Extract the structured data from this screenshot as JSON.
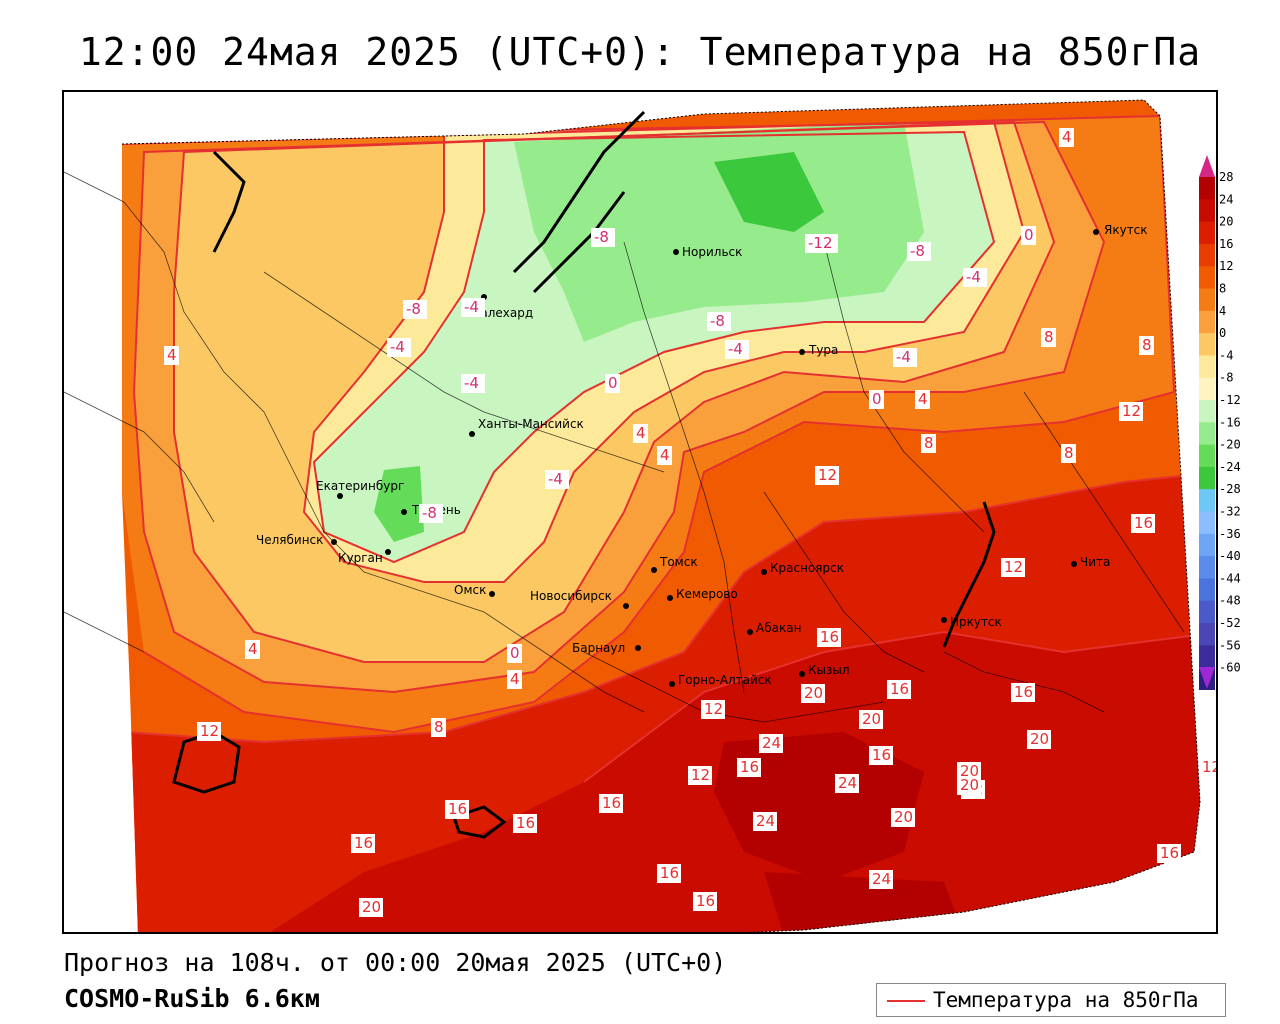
{
  "title": "12:00 24мая 2025 (UTC+0): Температура на 850гПа",
  "forecast_line": "Прогноз на 108ч. от 00:00 20мая 2025 (UTC+0)",
  "model_line": "COSMO-RuSib 6.6км",
  "legend": {
    "label": "Температура на 850гПа",
    "line_color": "#e53030"
  },
  "colorbar": {
    "ticks": [
      "28",
      "24",
      "20",
      "16",
      "12",
      "8",
      "4",
      "0",
      "-4",
      "-8",
      "-12",
      "-16",
      "-20",
      "-24",
      "-28",
      "-32",
      "-36",
      "-40",
      "-44",
      "-48",
      "-52",
      "-56",
      "-60"
    ],
    "colors": [
      "#b30000",
      "#c80a00",
      "#dc1e00",
      "#e83c00",
      "#f05a00",
      "#f57c14",
      "#f9a03c",
      "#fcc864",
      "#fde99a",
      "#fff4c0",
      "#c8f5c0",
      "#96eb8c",
      "#64dc5a",
      "#3cc83c",
      "#6ec8f5",
      "#8cbeff",
      "#6ea5f5",
      "#5a8ceb",
      "#4b73dc",
      "#4b5ac8",
      "#4b46b4",
      "#3c2d9b",
      "#2d1e82"
    ]
  },
  "cities": [
    {
      "name": "Якутск"
    },
    {
      "name": "Норильск"
    },
    {
      "name": "Салехард"
    },
    {
      "name": "Тура"
    },
    {
      "name": "Ханты-Мансийск"
    },
    {
      "name": "Екатеринбург"
    },
    {
      "name": "Тюмень"
    },
    {
      "name": "Челябинск"
    },
    {
      "name": "Курган"
    },
    {
      "name": "Омск"
    },
    {
      "name": "Новосибирск"
    },
    {
      "name": "Томск"
    },
    {
      "name": "Красноярск"
    },
    {
      "name": "Кемерово"
    },
    {
      "name": "Абакан"
    },
    {
      "name": "Барнаул"
    },
    {
      "name": "Горно-Алтайск"
    },
    {
      "name": "Кызыл"
    },
    {
      "name": "Иркутск"
    },
    {
      "name": "Чита"
    }
  ],
  "isotherm_labels": [
    "4",
    "0",
    "-12",
    "-8",
    "-8",
    "-4",
    "-8",
    "-4",
    "-8",
    "-4",
    "0",
    "8",
    "-4",
    "-4",
    "4",
    "4",
    "12",
    "8",
    "4",
    "-4",
    "0",
    "4",
    "8",
    "12",
    "8",
    "16",
    "-4",
    "12",
    "16",
    "12",
    "-8",
    "4",
    "0",
    "8",
    "12",
    "12",
    "16",
    "4",
    "20",
    "16",
    "20",
    "12",
    "12",
    "24",
    "16",
    "20",
    "16",
    "24",
    "20",
    "20",
    "20",
    "16",
    "16",
    "16",
    "16",
    "16",
    "24",
    "16",
    "24",
    "20",
    "16"
  ]
}
